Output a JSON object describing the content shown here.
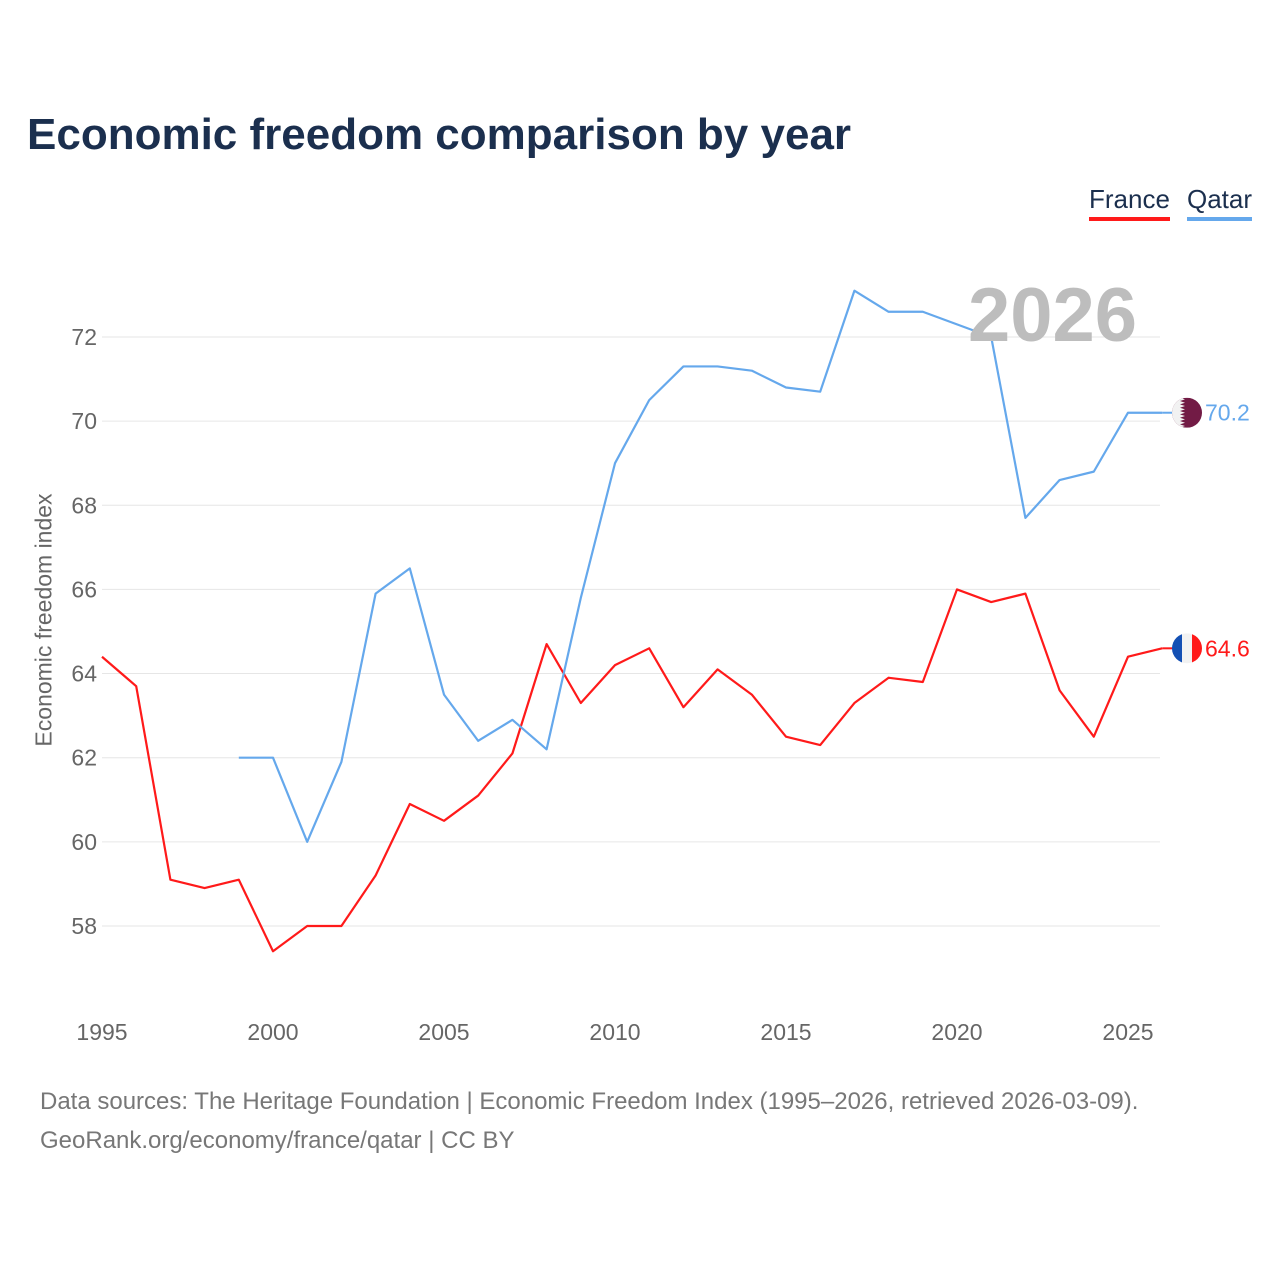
{
  "chart_data": {
    "type": "line",
    "title": "Economic freedom comparison by year",
    "xlabel": "",
    "ylabel": "Economic freedom index",
    "xlim": [
      1995,
      2026
    ],
    "ylim": [
      57,
      73
    ],
    "x_ticks": [
      1995,
      2000,
      2005,
      2010,
      2015,
      2020,
      2025
    ],
    "y_ticks": [
      58,
      60,
      62,
      64,
      66,
      68,
      70,
      72
    ],
    "grid": true,
    "legend_position": "top-right",
    "year_stamp": "2026",
    "series": [
      {
        "name": "France",
        "color": "#ff1a1a",
        "end_label": "64.6",
        "flag": "france-flag",
        "x": [
          1995,
          1996,
          1997,
          1998,
          1999,
          2000,
          2001,
          2002,
          2003,
          2004,
          2005,
          2006,
          2007,
          2008,
          2009,
          2010,
          2011,
          2012,
          2013,
          2014,
          2015,
          2016,
          2017,
          2018,
          2019,
          2020,
          2021,
          2022,
          2023,
          2024,
          2025,
          2026
        ],
        "values": [
          64.4,
          63.7,
          59.1,
          58.9,
          59.1,
          57.4,
          58.0,
          58.0,
          59.2,
          60.9,
          60.5,
          61.1,
          62.1,
          64.7,
          63.3,
          64.2,
          64.6,
          63.2,
          64.1,
          63.5,
          62.5,
          62.3,
          63.3,
          63.9,
          63.8,
          66.0,
          65.7,
          65.9,
          63.6,
          62.5,
          64.4,
          64.6
        ]
      },
      {
        "name": "Qatar",
        "color": "#65a8ec",
        "end_label": "70.2",
        "flag": "qatar-flag",
        "x": [
          1999,
          2000,
          2001,
          2002,
          2003,
          2004,
          2005,
          2006,
          2007,
          2008,
          2009,
          2010,
          2011,
          2012,
          2013,
          2014,
          2015,
          2016,
          2017,
          2018,
          2019,
          2020,
          2021,
          2022,
          2023,
          2024,
          2025,
          2026
        ],
        "values": [
          62.0,
          62.0,
          60.0,
          61.9,
          65.9,
          66.5,
          63.5,
          62.4,
          62.9,
          62.2,
          65.8,
          69.0,
          70.5,
          71.3,
          71.3,
          71.2,
          70.8,
          70.7,
          73.1,
          72.6,
          72.6,
          72.3,
          72.0,
          67.7,
          68.6,
          68.8,
          70.2,
          70.2
        ]
      }
    ]
  },
  "footer": {
    "line1": "Data sources: The Heritage Foundation | Economic Freedom Index (1995–2026, retrieved 2026-03-09).",
    "line2": "GeoRank.org/economy/france/qatar | CC BY"
  }
}
